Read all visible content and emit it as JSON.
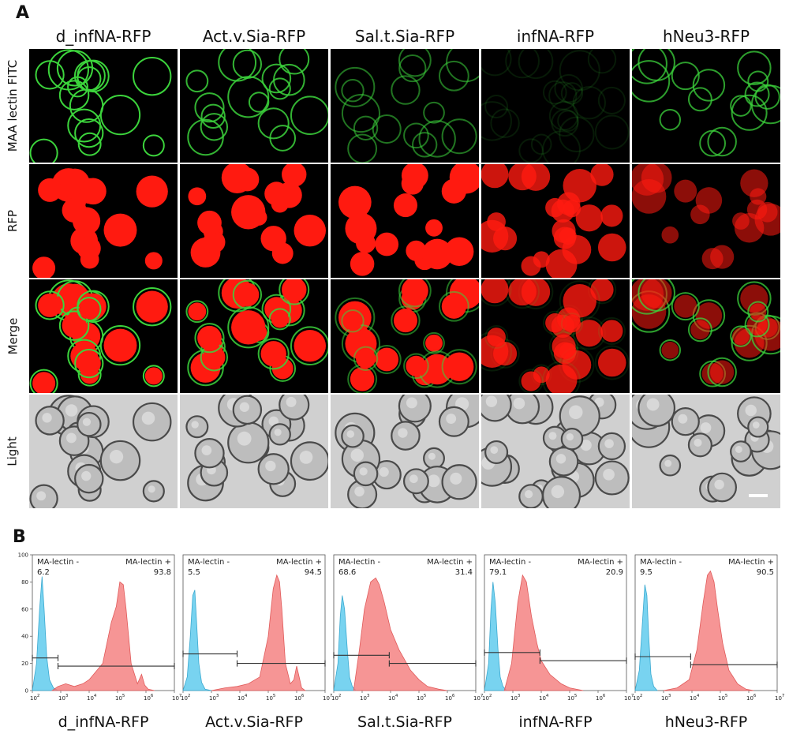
{
  "figure": {
    "panel_a_letter": "A",
    "panel_b_letter": "B",
    "columns": [
      "d_infNA-RFP",
      "Act.v.Sia-RFP",
      "Sal.t.Sia-RFP",
      "infNA-RFP",
      "hNeu3-RFP"
    ],
    "rows": [
      "MAA lectin FITC",
      "RFP",
      "Merge",
      "Light"
    ],
    "colors": {
      "fitc": "#3cd43c",
      "rfp": "#ff1a10",
      "negative_peak": "#56c8ec",
      "positive_peak": "#f47b7b",
      "brightfield": "#d0d0d0"
    }
  },
  "chart_data": [
    {
      "type": "area",
      "sample": "d_infNA-RFP",
      "xscale": "log",
      "xlim": [
        100,
        10000000
      ],
      "ylim": [
        0,
        100
      ],
      "yticks": [
        0,
        20,
        40,
        60,
        80,
        100
      ],
      "xtick_exponents": [
        2,
        3,
        4,
        5,
        6,
        7
      ],
      "gates": [
        {
          "label": "MA-lectin -",
          "value": "6.2"
        },
        {
          "label": "MA-lectin +",
          "value": "93.8"
        }
      ],
      "gate_positions": {
        "neg_range": [
          100,
          800
        ],
        "neg_y": 24,
        "pos_range": [
          800,
          10000000
        ],
        "pos_y": 18
      },
      "series": [
        {
          "name": "MA-lectin -",
          "x": [
            100,
            140,
            180,
            220,
            260,
            320,
            400,
            550,
            800,
            1500
          ],
          "y": [
            0,
            20,
            60,
            84,
            60,
            25,
            8,
            2,
            0,
            0
          ]
        },
        {
          "name": "MA-lectin +",
          "x": [
            500,
            800,
            1500,
            3000,
            6000,
            10000,
            30000,
            60000,
            90000,
            120000,
            160000,
            200000,
            300000,
            500000,
            700000,
            900000,
            1200000,
            2000000
          ],
          "y": [
            0,
            3,
            5,
            3,
            5,
            8,
            20,
            50,
            62,
            80,
            78,
            60,
            20,
            5,
            12,
            4,
            1,
            0
          ]
        }
      ]
    },
    {
      "type": "area",
      "sample": "Act.v.Sia-RFP",
      "xscale": "log",
      "xlim": [
        100,
        10000000
      ],
      "ylim": [
        0,
        100
      ],
      "yticks": [
        0,
        20,
        40,
        60,
        80,
        100
      ],
      "xtick_exponents": [
        2,
        3,
        4,
        5,
        6,
        7
      ],
      "gates": [
        {
          "label": "MA-lectin -",
          "value": "5.5"
        },
        {
          "label": "MA-lectin +",
          "value": "94.5"
        }
      ],
      "gate_positions": {
        "neg_range": [
          100,
          8000
        ],
        "neg_y": 27,
        "pos_range": [
          8000,
          10000000
        ],
        "pos_y": 20
      },
      "series": [
        {
          "name": "MA-lectin -",
          "x": [
            100,
            140,
            180,
            220,
            260,
            300,
            360,
            450,
            600,
            1000
          ],
          "y": [
            0,
            10,
            40,
            70,
            74,
            50,
            20,
            6,
            1,
            0
          ]
        },
        {
          "name": "MA-lectin +",
          "x": [
            1000,
            3000,
            8000,
            20000,
            50000,
            100000,
            150000,
            200000,
            250000,
            300000,
            400000,
            600000,
            800000,
            1000000,
            1500000,
            2000000
          ],
          "y": [
            0,
            2,
            3,
            5,
            10,
            40,
            75,
            85,
            80,
            60,
            20,
            5,
            8,
            18,
            2,
            0
          ]
        }
      ]
    },
    {
      "type": "area",
      "sample": "Sal.t.Sia-RFP",
      "xscale": "log",
      "xlim": [
        100,
        10000000
      ],
      "ylim": [
        0,
        100
      ],
      "yticks": [
        0,
        20,
        40,
        60,
        80,
        100
      ],
      "xtick_exponents": [
        2,
        3,
        4,
        5,
        6,
        7
      ],
      "gates": [
        {
          "label": "MA-lectin -",
          "value": "68.6"
        },
        {
          "label": "MA-lectin +",
          "value": "31.4"
        }
      ],
      "gate_positions": {
        "neg_range": [
          100,
          9000
        ],
        "neg_y": 26,
        "pos_range": [
          9000,
          10000000
        ],
        "pos_y": 20
      },
      "series": [
        {
          "name": "MA-lectin -",
          "x": [
            100,
            140,
            170,
            200,
            240,
            300,
            360,
            450,
            600
          ],
          "y": [
            0,
            20,
            55,
            70,
            60,
            30,
            10,
            3,
            0
          ]
        },
        {
          "name": "MA-lectin +",
          "x": [
            500,
            800,
            1200,
            2000,
            3000,
            4000,
            6000,
            10000,
            20000,
            50000,
            100000,
            200000,
            500000,
            1000000
          ],
          "y": [
            0,
            30,
            60,
            80,
            83,
            78,
            65,
            45,
            30,
            15,
            8,
            3,
            1,
            0
          ]
        }
      ]
    },
    {
      "type": "area",
      "sample": "infNA-RFP",
      "xscale": "log",
      "xlim": [
        100,
        10000000
      ],
      "ylim": [
        0,
        100
      ],
      "yticks": [
        0,
        20,
        40,
        60,
        80,
        100
      ],
      "xtick_exponents": [
        2,
        3,
        4,
        5,
        6,
        7
      ],
      "gates": [
        {
          "label": "MA-lectin -",
          "value": "79.1"
        },
        {
          "label": "MA-lectin +",
          "value": "20.9"
        }
      ],
      "gate_positions": {
        "neg_range": [
          100,
          9000
        ],
        "neg_y": 28,
        "pos_range": [
          9000,
          10000000
        ],
        "pos_y": 22
      },
      "series": [
        {
          "name": "MA-lectin -",
          "x": [
            100,
            140,
            170,
            200,
            240,
            300,
            360,
            450,
            600
          ],
          "y": [
            0,
            20,
            60,
            80,
            65,
            30,
            10,
            3,
            0
          ]
        },
        {
          "name": "MA-lectin +",
          "x": [
            500,
            900,
            1500,
            2200,
            3000,
            4500,
            7000,
            10000,
            20000,
            50000,
            100000,
            300000
          ],
          "y": [
            0,
            20,
            65,
            85,
            80,
            55,
            35,
            22,
            12,
            5,
            2,
            0
          ]
        }
      ]
    },
    {
      "type": "area",
      "sample": "hNeu3-RFP",
      "xscale": "log",
      "xlim": [
        100,
        10000000
      ],
      "ylim": [
        0,
        100
      ],
      "yticks": [
        0,
        20,
        40,
        60,
        80,
        100
      ],
      "xtick_exponents": [
        2,
        3,
        4,
        5,
        6,
        7
      ],
      "gates": [
        {
          "label": "MA-lectin -",
          "value": "9.5"
        },
        {
          "label": "MA-lectin +",
          "value": "90.5"
        }
      ],
      "gate_positions": {
        "neg_range": [
          100,
          9000
        ],
        "neg_y": 25,
        "pos_range": [
          9000,
          10000000
        ],
        "pos_y": 19
      },
      "series": [
        {
          "name": "MA-lectin -",
          "x": [
            100,
            140,
            180,
            220,
            260,
            300,
            360,
            450,
            600
          ],
          "y": [
            0,
            15,
            50,
            78,
            70,
            40,
            12,
            3,
            0
          ]
        },
        {
          "name": "MA-lectin +",
          "x": [
            1000,
            3000,
            8000,
            15000,
            25000,
            35000,
            45000,
            60000,
            80000,
            120000,
            200000,
            400000,
            800000,
            1500000
          ],
          "y": [
            0,
            2,
            8,
            30,
            65,
            85,
            88,
            80,
            60,
            35,
            15,
            5,
            1,
            0
          ]
        }
      ]
    }
  ]
}
